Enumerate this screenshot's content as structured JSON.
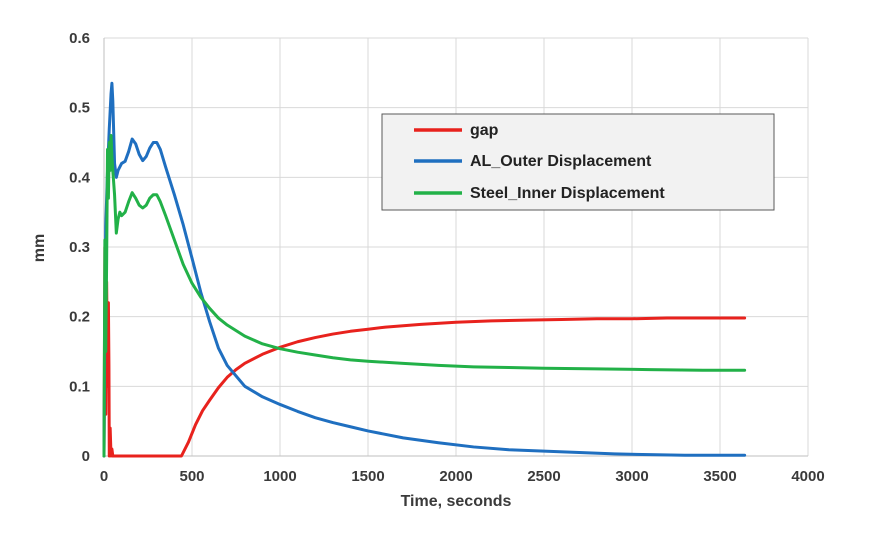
{
  "chart_data": {
    "type": "line",
    "title": "",
    "xlabel": "Time, seconds",
    "ylabel": "mm",
    "xlim": [
      0,
      4000
    ],
    "ylim": [
      0,
      0.6
    ],
    "x_ticks": [
      "0",
      "500",
      "1000",
      "1500",
      "2000",
      "2500",
      "3000",
      "3500",
      "4000"
    ],
    "y_ticks": [
      "0",
      "0.1",
      "0.2",
      "0.3",
      "0.4",
      "0.5",
      "0.6"
    ],
    "grid": true,
    "legend_position": "top-right",
    "series": [
      {
        "name": "gap",
        "color": "#e8221d",
        "x": [
          0,
          5,
          10,
          15,
          20,
          25,
          28,
          30,
          35,
          40,
          45,
          50,
          100,
          200,
          300,
          400,
          440,
          480,
          520,
          560,
          600,
          650,
          700,
          750,
          800,
          900,
          1000,
          1100,
          1200,
          1300,
          1400,
          1500,
          1600,
          1800,
          2000,
          2200,
          2400,
          2600,
          2800,
          3000,
          3200,
          3400,
          3640
        ],
        "y": [
          0,
          0.3,
          0.06,
          0.25,
          0.1,
          0.22,
          0.13,
          0.0,
          0.04,
          0.0,
          0.01,
          0,
          0,
          0,
          0,
          0,
          0,
          0.02,
          0.045,
          0.065,
          0.08,
          0.098,
          0.113,
          0.124,
          0.133,
          0.146,
          0.156,
          0.164,
          0.17,
          0.175,
          0.179,
          0.182,
          0.185,
          0.189,
          0.192,
          0.194,
          0.195,
          0.196,
          0.197,
          0.197,
          0.198,
          0.198,
          0.198
        ]
      },
      {
        "name": "AL_Outer Displacement",
        "color": "#1f6fc0",
        "x": [
          0,
          5,
          10,
          20,
          30,
          40,
          45,
          50,
          60,
          70,
          80,
          100,
          120,
          140,
          160,
          180,
          200,
          220,
          240,
          260,
          280,
          300,
          320,
          350,
          400,
          450,
          500,
          550,
          600,
          650,
          700,
          800,
          900,
          1000,
          1100,
          1200,
          1300,
          1400,
          1500,
          1700,
          1900,
          2100,
          2300,
          2500,
          2700,
          2900,
          3100,
          3300,
          3500,
          3640
        ],
        "y": [
          0,
          0.2,
          0.33,
          0.41,
          0.47,
          0.52,
          0.535,
          0.51,
          0.42,
          0.4,
          0.41,
          0.42,
          0.423,
          0.437,
          0.455,
          0.448,
          0.433,
          0.424,
          0.43,
          0.442,
          0.45,
          0.45,
          0.44,
          0.415,
          0.375,
          0.332,
          0.284,
          0.235,
          0.193,
          0.155,
          0.13,
          0.1,
          0.085,
          0.074,
          0.064,
          0.055,
          0.048,
          0.042,
          0.036,
          0.026,
          0.019,
          0.013,
          0.009,
          0.007,
          0.005,
          0.003,
          0.002,
          0.001,
          0.001,
          0.001
        ]
      },
      {
        "name": "Steel_Inner Displacement",
        "color": "#22b148",
        "x": [
          0,
          5,
          10,
          15,
          20,
          25,
          30,
          35,
          40,
          45,
          50,
          60,
          70,
          80,
          90,
          100,
          120,
          140,
          160,
          180,
          200,
          220,
          240,
          260,
          280,
          300,
          320,
          350,
          400,
          450,
          500,
          550,
          600,
          650,
          700,
          800,
          900,
          1000,
          1100,
          1200,
          1300,
          1400,
          1500,
          1700,
          1900,
          2100,
          2300,
          2500,
          2800,
          3100,
          3400,
          3640
        ],
        "y": [
          0,
          0.31,
          0.15,
          0.28,
          0.44,
          0.37,
          0.45,
          0.41,
          0.46,
          0.43,
          0.41,
          0.375,
          0.32,
          0.34,
          0.35,
          0.345,
          0.35,
          0.365,
          0.378,
          0.37,
          0.36,
          0.356,
          0.36,
          0.37,
          0.375,
          0.375,
          0.365,
          0.345,
          0.31,
          0.275,
          0.248,
          0.228,
          0.212,
          0.198,
          0.188,
          0.172,
          0.161,
          0.154,
          0.149,
          0.145,
          0.141,
          0.138,
          0.136,
          0.133,
          0.13,
          0.128,
          0.127,
          0.126,
          0.125,
          0.124,
          0.123,
          0.123
        ]
      }
    ]
  }
}
